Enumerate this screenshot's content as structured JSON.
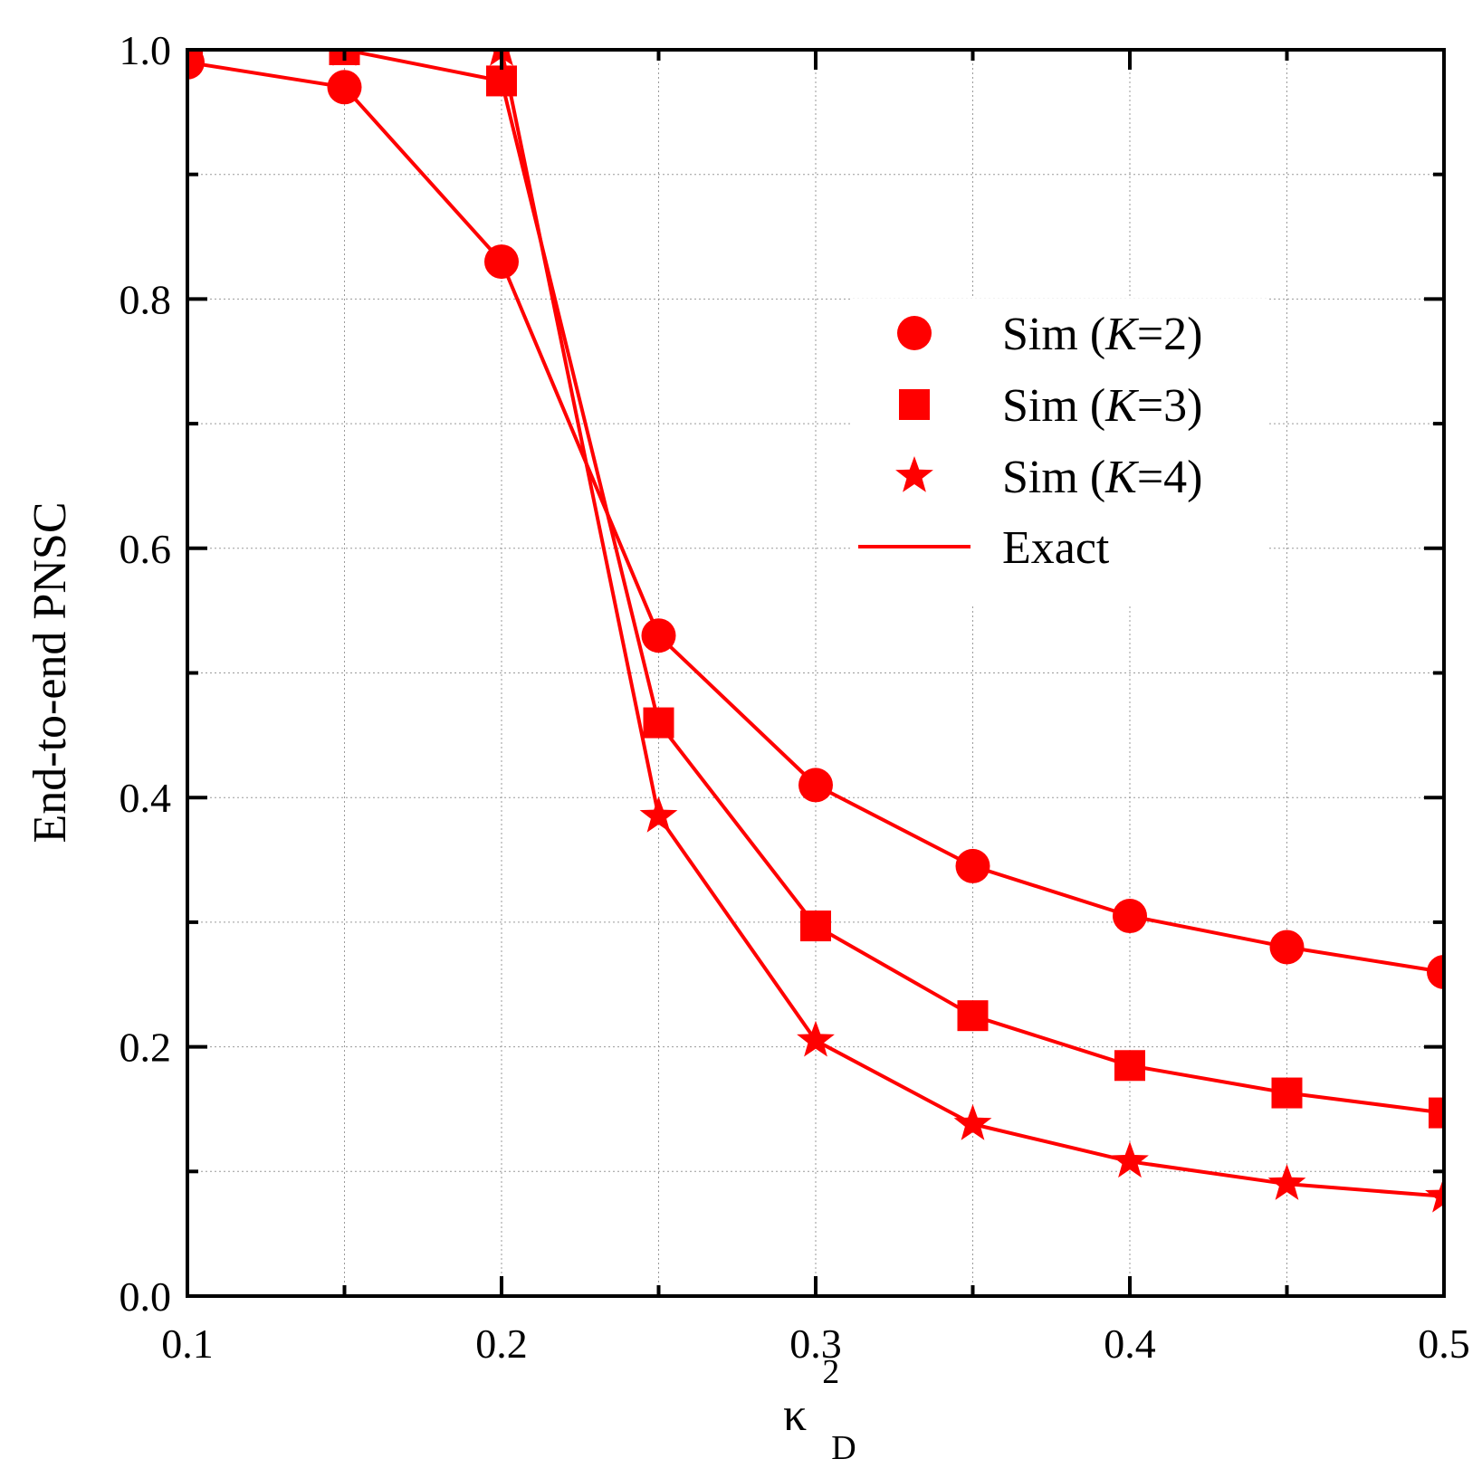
{
  "chart_data": {
    "type": "line",
    "title": "",
    "xlabel": "κ",
    "xlabel_sup": "2",
    "xlabel_sub": "D",
    "ylabel": "End-to-end PNSC",
    "xlim": [
      0.1,
      0.5
    ],
    "ylim": [
      0.0,
      1.0
    ],
    "x_ticks": [
      "0.1",
      "0.2",
      "0.3",
      "0.4",
      "0.5"
    ],
    "y_ticks": [
      "0.0",
      "0.2",
      "0.4",
      "0.6",
      "0.8",
      "1.0"
    ],
    "grid": true,
    "legend_position": "right-middle",
    "color": "#ff0000",
    "x": [
      0.1,
      0.15,
      0.2,
      0.25,
      0.3,
      0.35,
      0.4,
      0.45,
      0.5
    ],
    "series": [
      {
        "name": "Sim (K=2)",
        "legend_prefix": "Sim (",
        "legend_var": "K",
        "legend_suffix": "=2)",
        "marker": "circle",
        "values": [
          0.99,
          0.97,
          0.83,
          0.53,
          0.41,
          0.345,
          0.305,
          0.28,
          0.26
        ]
      },
      {
        "name": "Sim (K=3)",
        "legend_prefix": "Sim (",
        "legend_var": "K",
        "legend_suffix": "=3)",
        "marker": "square",
        "values": [
          1.0,
          1.0,
          0.975,
          0.46,
          0.297,
          0.225,
          0.185,
          0.163,
          0.147
        ]
      },
      {
        "name": "Sim (K=4)",
        "legend_prefix": "Sim (",
        "legend_var": "K",
        "legend_suffix": "=4)",
        "marker": "star",
        "values": [
          1.0,
          1.0,
          1.0,
          0.385,
          0.205,
          0.138,
          0.108,
          0.09,
          0.08
        ]
      }
    ],
    "exact_label": "Exact"
  }
}
